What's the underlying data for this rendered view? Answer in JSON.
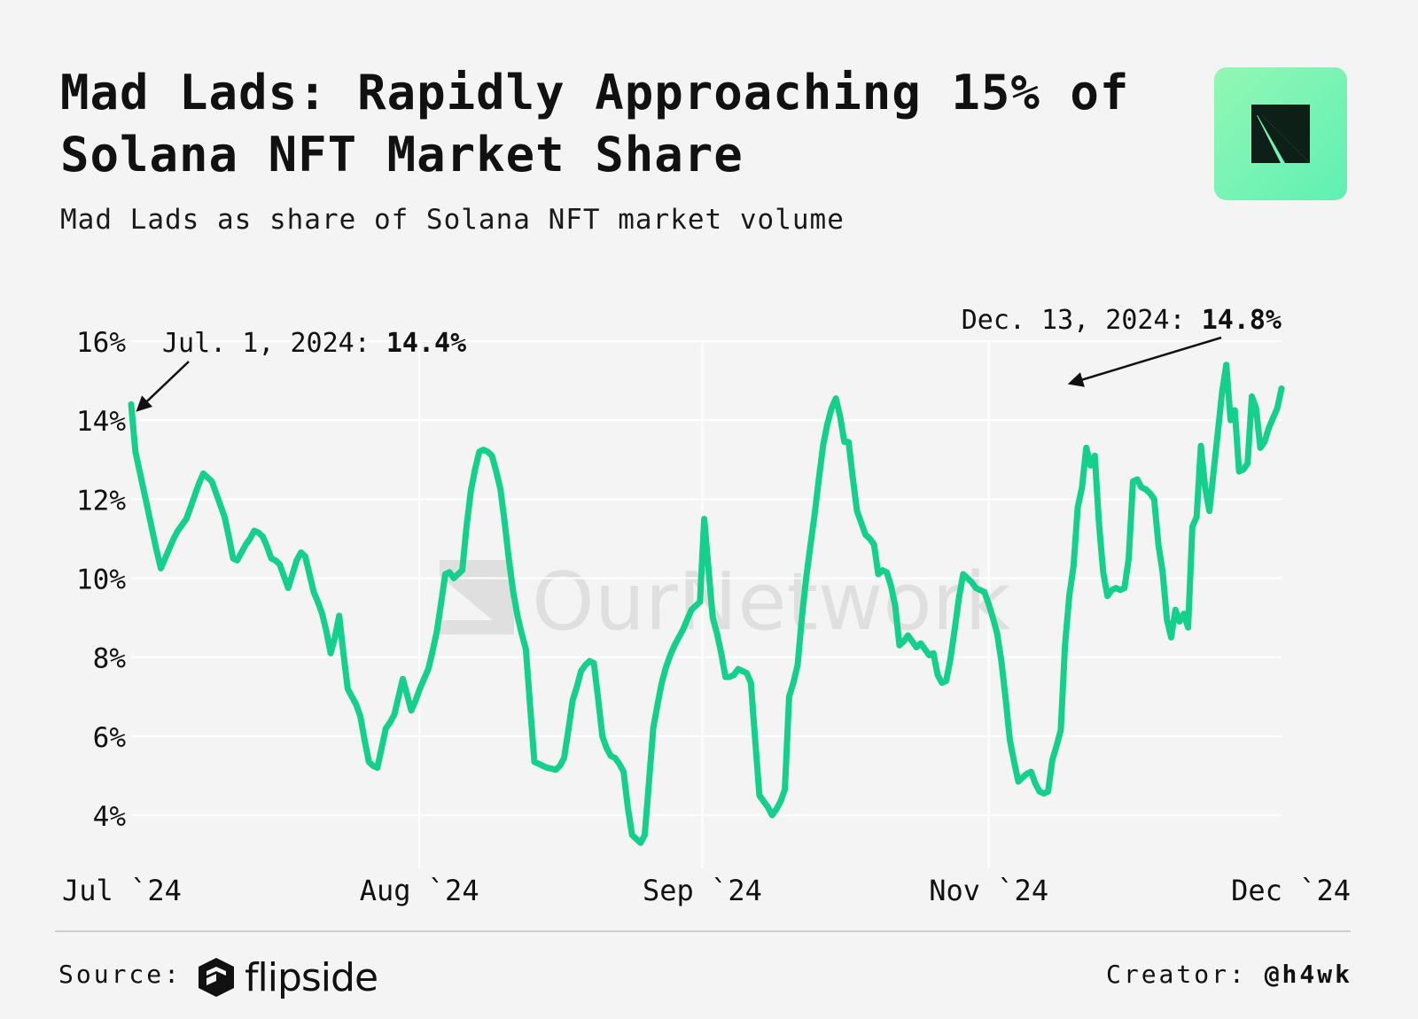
{
  "header": {
    "title": "Mad Lads: Rapidly Approaching 15% of Solana NFT Market Share",
    "subtitle": "Mad Lads as share of Solana NFT market volume"
  },
  "footer": {
    "source_label": "Source:",
    "source_brand": "flipside",
    "creator_label": "Creator:",
    "creator_handle": "@h4wk"
  },
  "watermark": "OurNetwork",
  "colors": {
    "line": "#14d08c",
    "background": "#f4f4f4",
    "logo": "#6ef5b6"
  },
  "chart_data": {
    "type": "line",
    "title": "Mad Lads: Rapidly Approaching 15% of Solana NFT Market Share",
    "subtitle": "Mad Lads as share of Solana NFT market volume",
    "xlabel": "",
    "ylabel": "",
    "x_tick_labels": [
      "Jul `24",
      "Aug `24",
      "Sep `24",
      "Nov `24",
      "Dec `24"
    ],
    "y_tick_labels": [
      "4%",
      "6%",
      "8%",
      "10%",
      "12%",
      "14%",
      "16%"
    ],
    "y_ticks": [
      4,
      6,
      8,
      10,
      12,
      14,
      16
    ],
    "ylim": [
      2.7,
      16
    ],
    "grid": true,
    "annotations": [
      {
        "label": "Jul. 1, 2024:",
        "value_text": "14.4%",
        "x_index": 0,
        "y": 14.4
      },
      {
        "label": "Dec. 13, 2024:",
        "value_text": "14.8%",
        "x_index": 223,
        "y": 14.8
      }
    ],
    "series": [
      {
        "values": [
          14.4,
          13.2,
          12.7,
          12.2,
          11.7,
          11.2,
          10.7,
          10.25,
          10.5,
          10.75,
          11.0,
          11.2,
          11.35,
          11.5,
          11.8,
          12.1,
          12.4,
          12.65,
          12.55,
          12.45,
          12.15,
          11.85,
          11.55,
          11.05,
          10.5,
          10.45,
          10.65,
          10.85,
          11.0,
          11.2,
          11.15,
          11.05,
          10.8,
          10.5,
          10.45,
          10.35,
          10.05,
          9.75,
          10.1,
          10.45,
          10.65,
          10.55,
          10.1,
          9.65,
          9.4,
          9.1,
          8.65,
          8.1,
          8.5,
          9.05,
          8.1,
          7.2,
          7.0,
          6.8,
          6.5,
          5.9,
          5.35,
          5.25,
          5.2,
          5.7,
          6.2,
          6.35,
          6.55,
          7.0,
          7.45,
          7.05,
          6.65,
          6.9,
          7.2,
          7.45,
          7.7,
          8.15,
          8.65,
          9.35,
          10.1,
          10.15,
          10.0,
          10.1,
          10.2,
          11.3,
          12.2,
          12.75,
          13.2,
          13.25,
          13.2,
          13.1,
          12.7,
          12.25,
          11.4,
          10.45,
          9.65,
          9.05,
          8.6,
          8.2,
          6.75,
          5.35,
          5.3,
          5.25,
          5.2,
          5.18,
          5.15,
          5.25,
          5.45,
          6.15,
          6.9,
          7.25,
          7.65,
          7.8,
          7.9,
          7.85,
          6.95,
          6.0,
          5.7,
          5.5,
          5.45,
          5.3,
          5.1,
          4.2,
          3.5,
          3.4,
          3.3,
          3.5,
          4.85,
          6.2,
          6.8,
          7.35,
          7.75,
          8.05,
          8.3,
          8.5,
          8.7,
          8.95,
          9.2,
          9.3,
          9.4,
          11.5,
          10.25,
          9.0,
          8.6,
          8.1,
          7.5,
          7.5,
          7.55,
          7.7,
          7.65,
          7.6,
          7.35,
          5.9,
          4.5,
          4.35,
          4.2,
          4.0,
          4.15,
          4.35,
          4.65,
          7.0,
          7.35,
          7.8,
          9.0,
          10.0,
          10.8,
          11.6,
          12.5,
          13.35,
          13.9,
          14.3,
          14.55,
          14.1,
          13.45,
          13.45,
          12.55,
          11.7,
          11.4,
          11.1,
          11.0,
          10.85,
          10.1,
          10.2,
          10.15,
          9.8,
          9.3,
          8.3,
          8.4,
          8.55,
          8.4,
          8.25,
          8.35,
          8.2,
          8.05,
          8.1,
          7.55,
          7.35,
          7.4,
          7.95,
          8.7,
          9.5,
          10.1,
          10.0,
          9.9,
          9.75,
          9.7,
          9.65,
          9.35,
          9.0,
          8.6,
          7.9,
          6.95,
          5.9,
          5.35,
          4.85,
          4.95,
          5.05,
          5.1,
          4.8,
          4.6,
          4.55,
          4.6,
          5.4,
          5.75,
          6.15,
          8.3,
          9.55,
          10.3,
          11.8,
          12.3,
          13.3,
          12.85,
          13.1,
          11.4,
          10.15,
          9.55,
          9.7,
          9.75,
          9.7,
          9.75,
          10.5,
          12.45,
          12.5,
          12.3,
          12.25,
          12.15,
          12.0,
          10.85,
          10.15,
          8.95,
          8.5,
          9.2,
          8.9,
          9.1,
          8.75,
          11.3,
          11.55,
          13.35,
          12.3,
          11.7,
          12.7,
          13.7,
          14.7,
          15.4,
          14.0,
          14.25,
          12.7,
          12.75,
          12.9,
          14.6,
          14.3,
          13.3,
          13.45,
          13.8,
          14.05,
          14.3,
          14.8
        ]
      }
    ]
  }
}
